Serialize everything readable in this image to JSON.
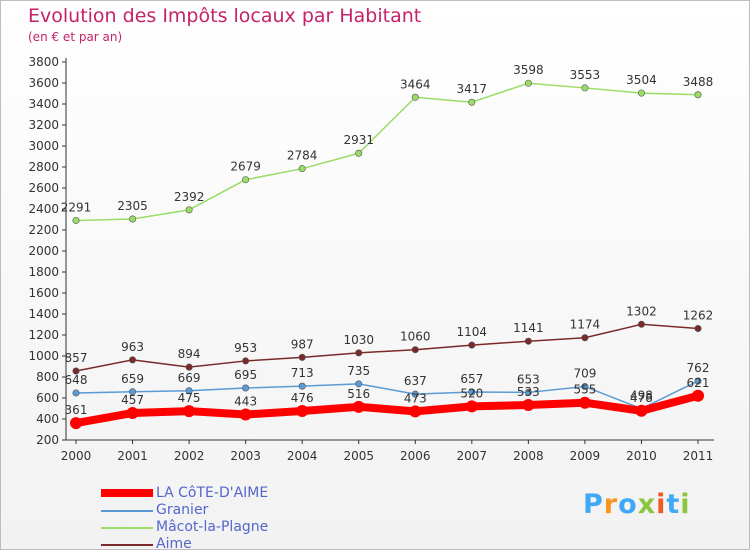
{
  "chart_data": {
    "type": "line",
    "title": "Evolution des Impôts locaux par Habitant",
    "subtitle": "(en € et par an)",
    "xlabel": "",
    "ylabel": "",
    "ylim": [
      200,
      3800
    ],
    "yticks": [
      200,
      400,
      600,
      800,
      1000,
      1200,
      1400,
      1600,
      1800,
      2000,
      2200,
      2400,
      2600,
      2800,
      3000,
      3200,
      3400,
      3600,
      3800
    ],
    "grid": false,
    "legend_position": "bottom-left",
    "categories": [
      "2000",
      "2001",
      "2002",
      "2003",
      "2004",
      "2005",
      "2006",
      "2007",
      "2008",
      "2009",
      "2010",
      "2011"
    ],
    "series": [
      {
        "name": "LA CôTE-D'AIME",
        "color": "#ff0000",
        "values": [
          361,
          457,
          475,
          443,
          476,
          516,
          473,
          520,
          533,
          555,
          478,
          621
        ]
      },
      {
        "name": "Granier",
        "color": "#5b9bd5",
        "values": [
          648,
          659,
          669,
          695,
          713,
          735,
          637,
          657,
          653,
          709,
          498,
          762
        ]
      },
      {
        "name": "Mâcot-la-Plagne",
        "color": "#99dd66",
        "values": [
          2291,
          2305,
          2392,
          2679,
          2784,
          2931,
          3464,
          3417,
          3598,
          3553,
          3504,
          3488
        ]
      },
      {
        "name": "Aime",
        "color": "#7a2a2a",
        "values": [
          857,
          963,
          894,
          953,
          987,
          1030,
          1060,
          1104,
          1141,
          1174,
          1302,
          1262
        ]
      }
    ]
  },
  "logo": {
    "text": "Proxiti",
    "letters": [
      "P",
      "r",
      "o",
      "x",
      "i",
      "t",
      "i"
    ],
    "colors": [
      "#3fa9f5",
      "#f7931e",
      "#3fa9f5",
      "#8cc63f",
      "#f15a24",
      "#3fa9f5",
      "#8cc63f"
    ]
  }
}
